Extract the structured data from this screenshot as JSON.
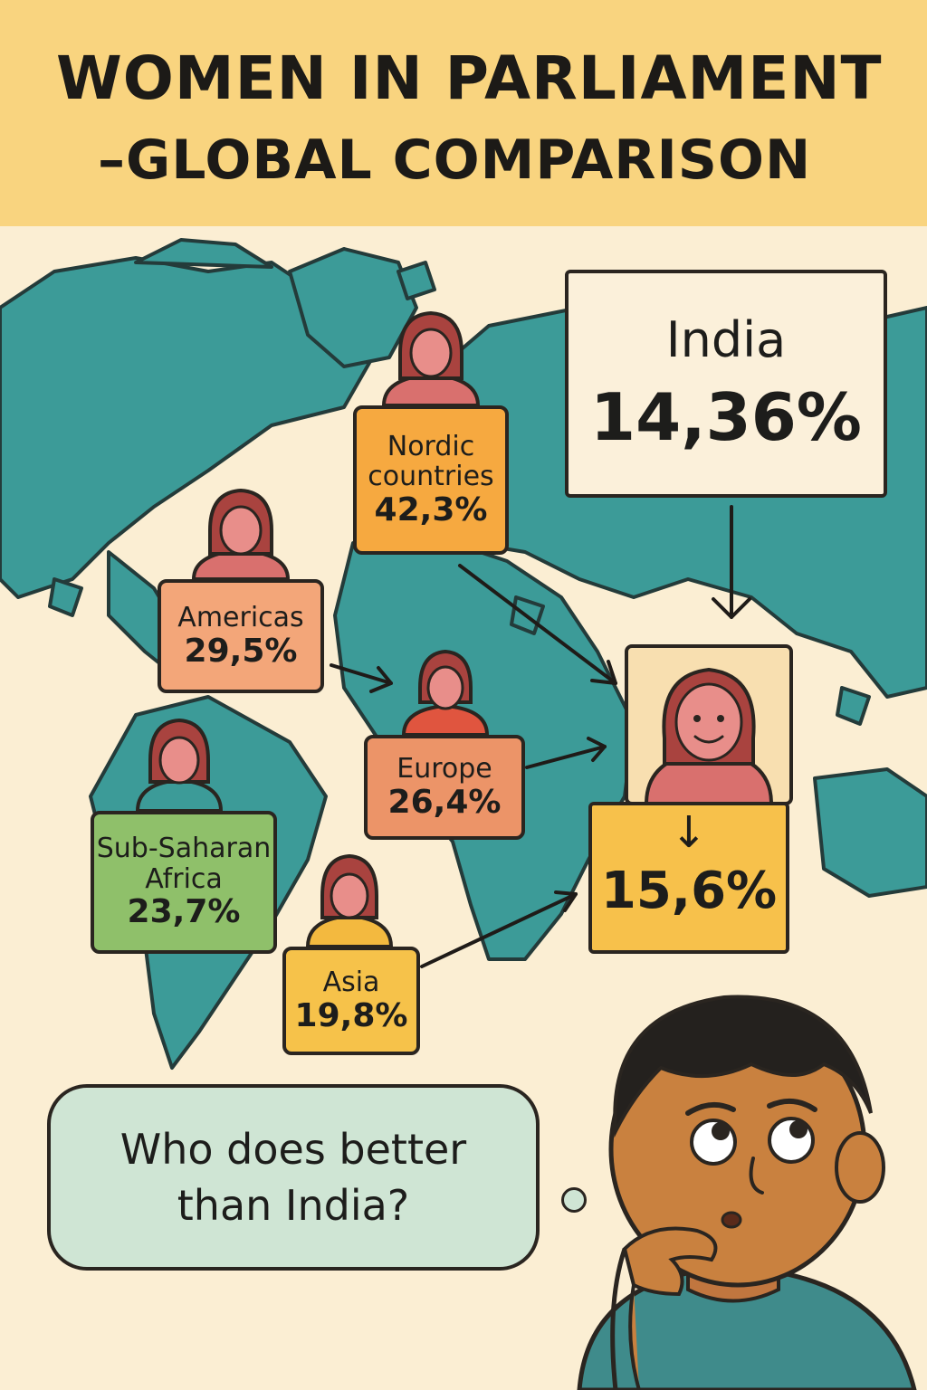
{
  "title": {
    "line1": "WOMEN IN PARLIAMENT",
    "line2": "–GLOBAL COMPARISON"
  },
  "regions": [
    {
      "label": "Nordic countries",
      "label_lines": [
        "Nordic",
        "countries"
      ],
      "value": "42,3%",
      "color": "#f6a940"
    },
    {
      "label": "Americas",
      "label_lines": [
        "Americas"
      ],
      "value": "29,5%",
      "color": "#f3a679"
    },
    {
      "label": "Europe",
      "label_lines": [
        "Europe"
      ],
      "value": "26,4%",
      "color": "#ec9468"
    },
    {
      "label": "Sub-Saharan Africa",
      "label_lines": [
        "Sub-Saharan",
        "Africa"
      ],
      "value": "23,7%",
      "color": "#8fc06a"
    },
    {
      "label": "Asia",
      "label_lines": [
        "Asia"
      ],
      "value": "19,8%",
      "color": "#f6c24a"
    }
  ],
  "india": {
    "label": "India",
    "value": "14,36%"
  },
  "world_average": {
    "arrow": "↓",
    "value": "15,6%"
  },
  "thought": {
    "line1": "Who does better",
    "line2": "than India?"
  },
  "colors": {
    "banner": "#f9d47f",
    "background": "#fbeed3",
    "map": "#3c9b98",
    "outline": "#2a2520",
    "avatar": "#d9706e"
  },
  "icons": [
    "woman-avatar-icon",
    "thinking-boy-illustration",
    "world-map-illustration",
    "arrow-icon"
  ]
}
